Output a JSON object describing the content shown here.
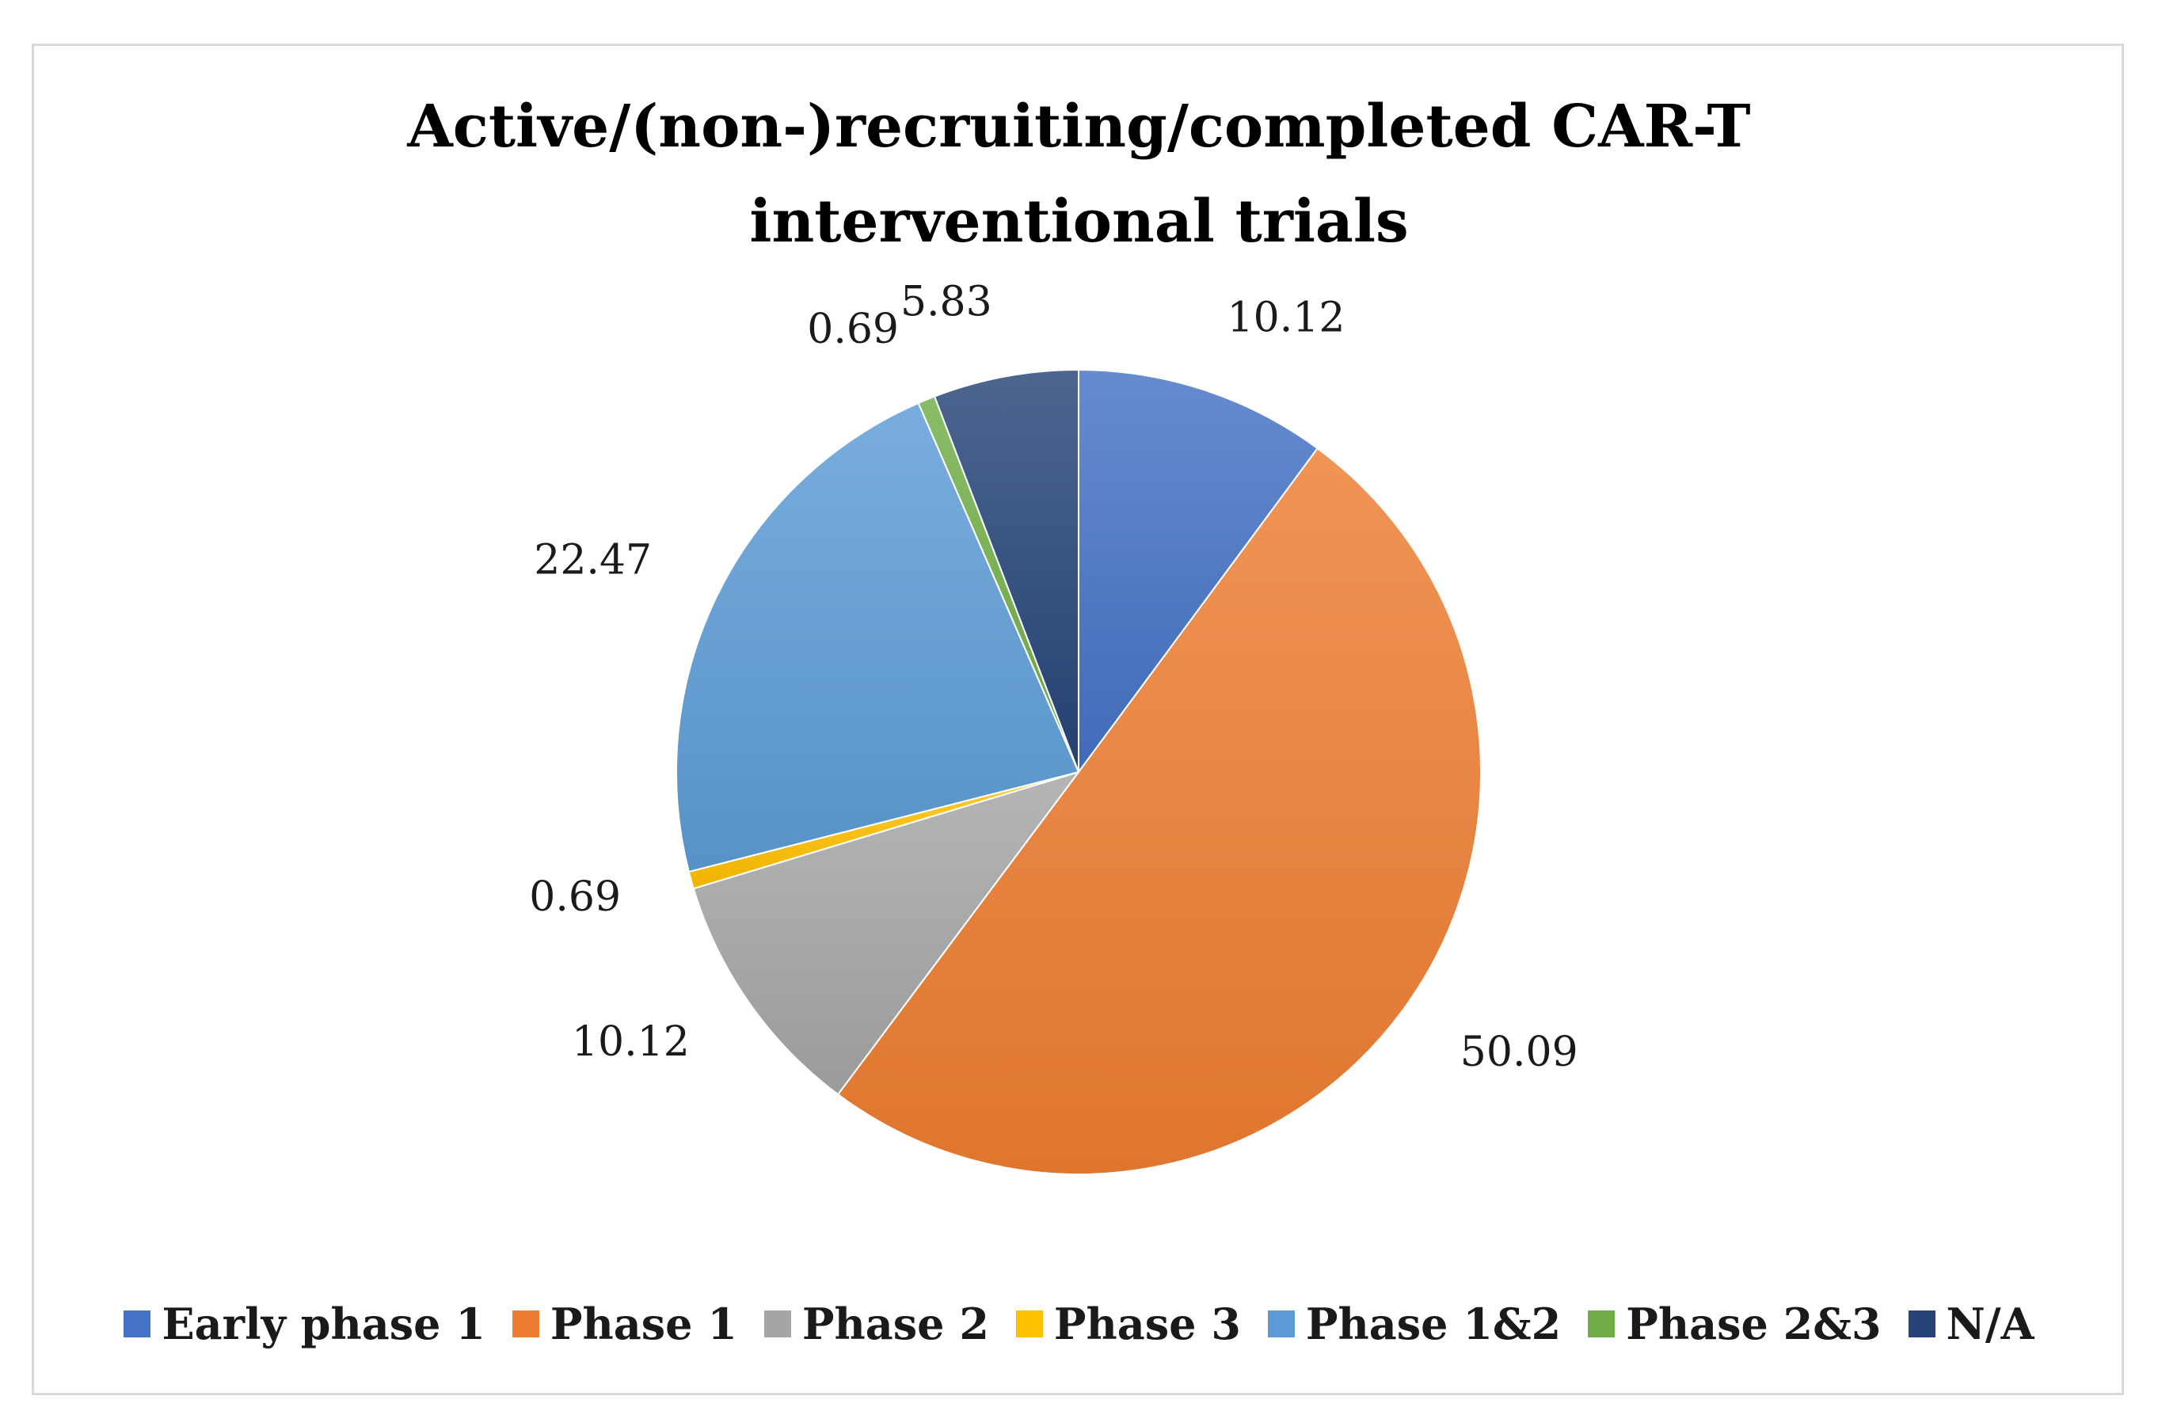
{
  "chart_data": {
    "type": "pie",
    "title": "Active/(non-)recruiting/completed CAR-T interventional trials",
    "title_lines": [
      "Active/(non-)recruiting/completed CAR-T",
      "interventional trials"
    ],
    "categories": [
      "Early phase 1",
      "Phase 1",
      "Phase 2",
      "Phase 3",
      "Phase 1&2",
      "Phase 2&3",
      "N/A"
    ],
    "values": [
      10.12,
      50.09,
      10.12,
      0.69,
      22.47,
      0.69,
      5.83
    ],
    "value_labels": [
      "10.12",
      "50.09",
      "10.12",
      "0.69",
      "22.47",
      "0.69",
      "5.83"
    ],
    "colors": [
      "#4472C4",
      "#ED7D31",
      "#A5A5A5",
      "#FFC000",
      "#5B9BD5",
      "#70AD47",
      "#264478"
    ],
    "start_angle": "12 o'clock",
    "direction": "clockwise",
    "legend_position": "bottom"
  }
}
